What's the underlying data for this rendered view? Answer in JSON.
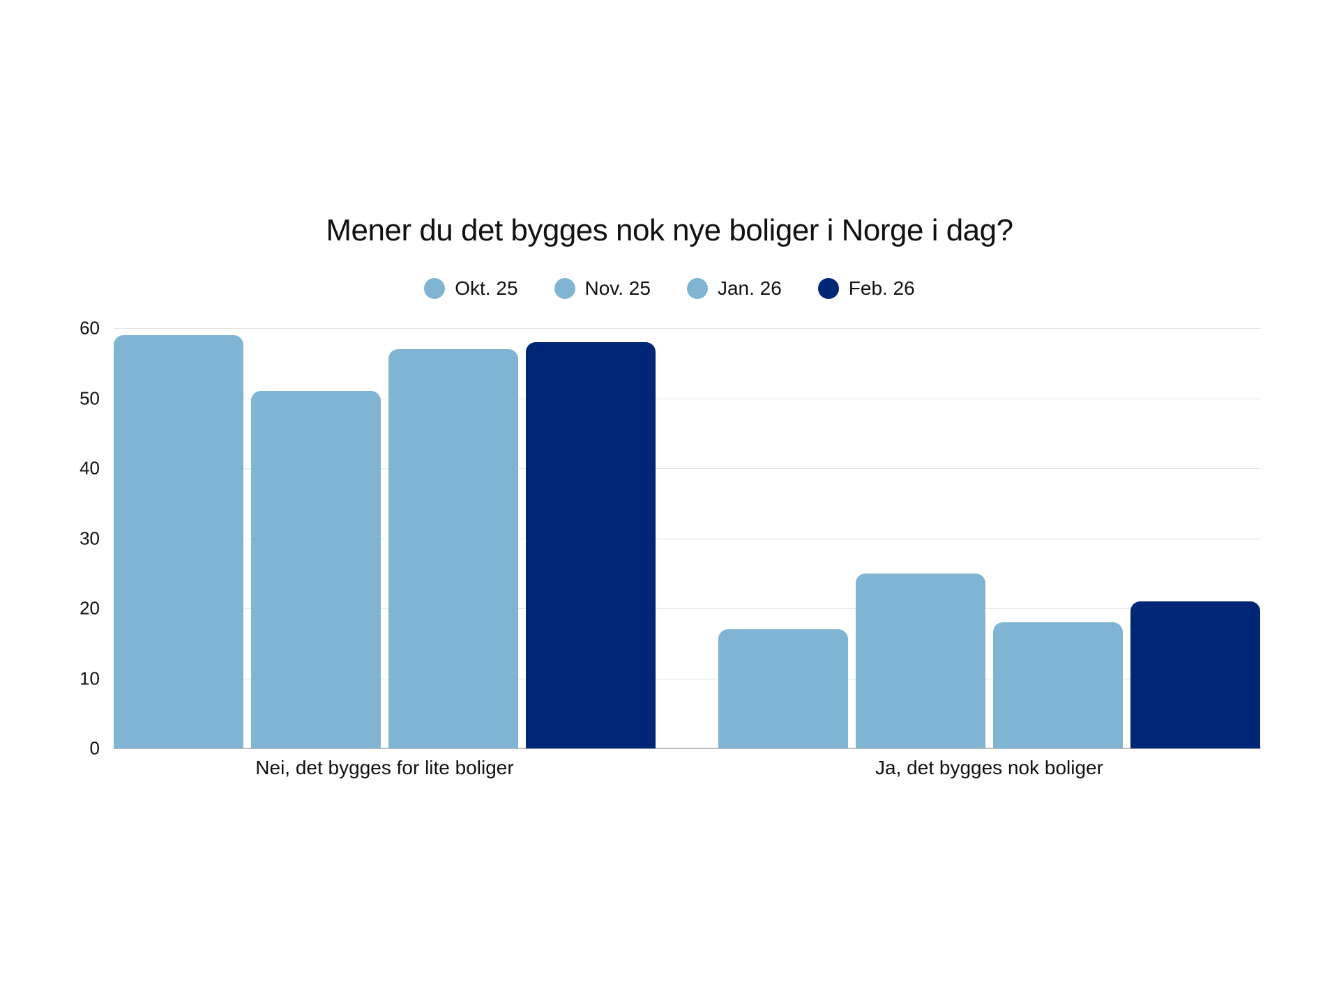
{
  "chart_data": {
    "type": "bar",
    "title": "Mener du det bygges nok nye boliger i Norge i dag?",
    "categories": [
      "Nei, det bygges for lite boliger",
      "Ja, det bygges nok boliger"
    ],
    "series": [
      {
        "name": "Okt. 25",
        "color": "#7fb4d3",
        "values": [
          59,
          17
        ]
      },
      {
        "name": "Nov. 25",
        "color": "#7fb4d3",
        "values": [
          51,
          25
        ]
      },
      {
        "name": "Jan. 26",
        "color": "#7fb4d3",
        "values": [
          57,
          18
        ]
      },
      {
        "name": "Feb. 26",
        "color": "#002776",
        "values": [
          58,
          21
        ]
      }
    ],
    "xlabel": "",
    "ylabel": "",
    "ylim": [
      0,
      60
    ],
    "yticks": [
      0,
      10,
      20,
      30,
      40,
      50,
      60
    ],
    "grid": true,
    "legend_position": "top"
  },
  "yticks_labels": [
    "0",
    "10",
    "20",
    "30",
    "40",
    "50",
    "60"
  ]
}
